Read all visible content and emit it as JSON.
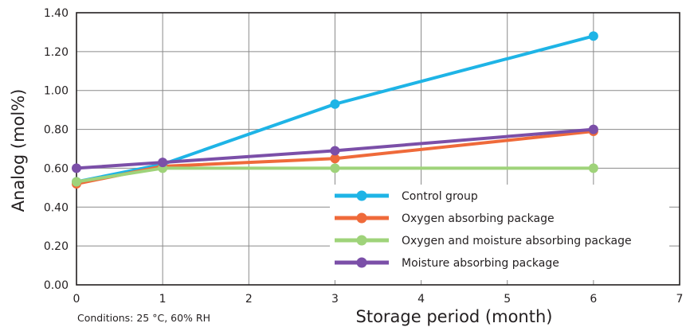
{
  "chart_data": {
    "type": "line",
    "xlabel": "Storage period (month)",
    "ylabel": "Analog (mol%)",
    "xlim": [
      0,
      7
    ],
    "ylim": [
      0,
      1.4
    ],
    "x_ticks": [
      "0",
      "1",
      "2",
      "3",
      "4",
      "5",
      "6",
      "7"
    ],
    "y_ticks": [
      "0.00",
      "0.20",
      "0.40",
      "0.60",
      "0.80",
      "1.00",
      "1.20",
      "1.40"
    ],
    "grid": true,
    "legend_position": "bottom-right",
    "note": "Conditions: 25 °C, 60% RH",
    "series": [
      {
        "name": "Control group",
        "color": "#1eb4e6",
        "x": [
          0,
          1,
          3,
          6
        ],
        "y": [
          0.53,
          0.62,
          0.93,
          1.28
        ]
      },
      {
        "name": "Oxygen absorbing package",
        "color": "#ef6a3a",
        "x": [
          0,
          1,
          3,
          6
        ],
        "y": [
          0.52,
          0.61,
          0.65,
          0.79
        ]
      },
      {
        "name": "Oxygen and moisture absorbing package",
        "color": "#9fd37a",
        "x": [
          0,
          1,
          3,
          6
        ],
        "y": [
          0.53,
          0.6,
          0.6,
          0.6
        ]
      },
      {
        "name": "Moisture absorbing package",
        "color": "#7b4fa8",
        "x": [
          0,
          1,
          3,
          6
        ],
        "y": [
          0.6,
          0.63,
          0.69,
          0.8
        ]
      }
    ]
  }
}
